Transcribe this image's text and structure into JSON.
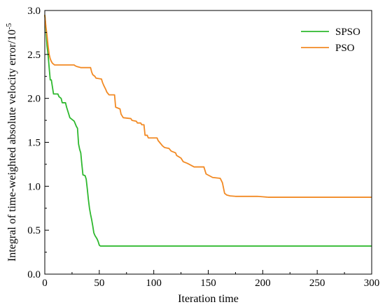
{
  "chart_data": {
    "type": "line",
    "xlabel": "Iteration time",
    "ylabel_main": "Integral of time-weighted absolute velocity error/10",
    "ylabel_sup": "-5",
    "xlim": [
      0,
      300
    ],
    "ylim": [
      0.0,
      3.0
    ],
    "x_ticks": [
      0,
      50,
      100,
      150,
      200,
      250,
      300
    ],
    "y_ticks": [
      0.0,
      0.5,
      1.0,
      1.5,
      2.0,
      2.5,
      3.0
    ],
    "x_tick_labels": [
      "0",
      "50",
      "100",
      "150",
      "200",
      "250",
      "300"
    ],
    "y_tick_labels": [
      "0.0",
      "0.5",
      "1.0",
      "1.5",
      "2.0",
      "2.5",
      "3.0"
    ],
    "grid": false,
    "legend_position": "top-right",
    "series": [
      {
        "name": "SPSO",
        "color": "#2eb82e",
        "points": [
          [
            0,
            2.95
          ],
          [
            1,
            2.8
          ],
          [
            2,
            2.6
          ],
          [
            3,
            2.5
          ],
          [
            4,
            2.35
          ],
          [
            5,
            2.21
          ],
          [
            6,
            2.21
          ],
          [
            7,
            2.13
          ],
          [
            8,
            2.05
          ],
          [
            12,
            2.05
          ],
          [
            13,
            2.02
          ],
          [
            15,
            2.0
          ],
          [
            16,
            1.95
          ],
          [
            19,
            1.95
          ],
          [
            20,
            1.9
          ],
          [
            21,
            1.86
          ],
          [
            22,
            1.82
          ],
          [
            23,
            1.78
          ],
          [
            25,
            1.76
          ],
          [
            27,
            1.74
          ],
          [
            28,
            1.71
          ],
          [
            29,
            1.68
          ],
          [
            30,
            1.66
          ],
          [
            31,
            1.48
          ],
          [
            32,
            1.42
          ],
          [
            33,
            1.38
          ],
          [
            34,
            1.25
          ],
          [
            35,
            1.13
          ],
          [
            37,
            1.12
          ],
          [
            38,
            1.08
          ],
          [
            39,
            0.97
          ],
          [
            40,
            0.85
          ],
          [
            41,
            0.75
          ],
          [
            42,
            0.68
          ],
          [
            43,
            0.62
          ],
          [
            44,
            0.55
          ],
          [
            45,
            0.47
          ],
          [
            46,
            0.44
          ],
          [
            48,
            0.4
          ],
          [
            49,
            0.37
          ],
          [
            50,
            0.33
          ],
          [
            51,
            0.32
          ],
          [
            300,
            0.32
          ]
        ]
      },
      {
        "name": "PSO",
        "color": "#f28a24",
        "points": [
          [
            0,
            2.95
          ],
          [
            1,
            2.82
          ],
          [
            2,
            2.72
          ],
          [
            3,
            2.6
          ],
          [
            4,
            2.5
          ],
          [
            5,
            2.45
          ],
          [
            6,
            2.42
          ],
          [
            7,
            2.4
          ],
          [
            9,
            2.38
          ],
          [
            27,
            2.38
          ],
          [
            28,
            2.37
          ],
          [
            30,
            2.36
          ],
          [
            33,
            2.35
          ],
          [
            42,
            2.35
          ],
          [
            43,
            2.3
          ],
          [
            44,
            2.27
          ],
          [
            46,
            2.25
          ],
          [
            47,
            2.23
          ],
          [
            52,
            2.22
          ],
          [
            53,
            2.18
          ],
          [
            54,
            2.15
          ],
          [
            56,
            2.1
          ],
          [
            57,
            2.07
          ],
          [
            59,
            2.04
          ],
          [
            64,
            2.04
          ],
          [
            65,
            1.9
          ],
          [
            69,
            1.88
          ],
          [
            70,
            1.82
          ],
          [
            72,
            1.78
          ],
          [
            79,
            1.77
          ],
          [
            80,
            1.75
          ],
          [
            84,
            1.74
          ],
          [
            85,
            1.72
          ],
          [
            88,
            1.72
          ],
          [
            89,
            1.7
          ],
          [
            91,
            1.7
          ],
          [
            92,
            1.58
          ],
          [
            94,
            1.58
          ],
          [
            95,
            1.55
          ],
          [
            103,
            1.55
          ],
          [
            104,
            1.52
          ],
          [
            106,
            1.49
          ],
          [
            108,
            1.46
          ],
          [
            110,
            1.44
          ],
          [
            114,
            1.43
          ],
          [
            116,
            1.4
          ],
          [
            120,
            1.38
          ],
          [
            121,
            1.35
          ],
          [
            125,
            1.32
          ],
          [
            127,
            1.28
          ],
          [
            131,
            1.26
          ],
          [
            134,
            1.24
          ],
          [
            137,
            1.22
          ],
          [
            146,
            1.22
          ],
          [
            148,
            1.14
          ],
          [
            151,
            1.12
          ],
          [
            154,
            1.1
          ],
          [
            161,
            1.09
          ],
          [
            163,
            1.04
          ],
          [
            164,
            0.98
          ],
          [
            165,
            0.92
          ],
          [
            167,
            0.9
          ],
          [
            170,
            0.89
          ],
          [
            175,
            0.885
          ],
          [
            195,
            0.885
          ],
          [
            200,
            0.88
          ],
          [
            205,
            0.875
          ],
          [
            300,
            0.875
          ]
        ]
      }
    ]
  }
}
